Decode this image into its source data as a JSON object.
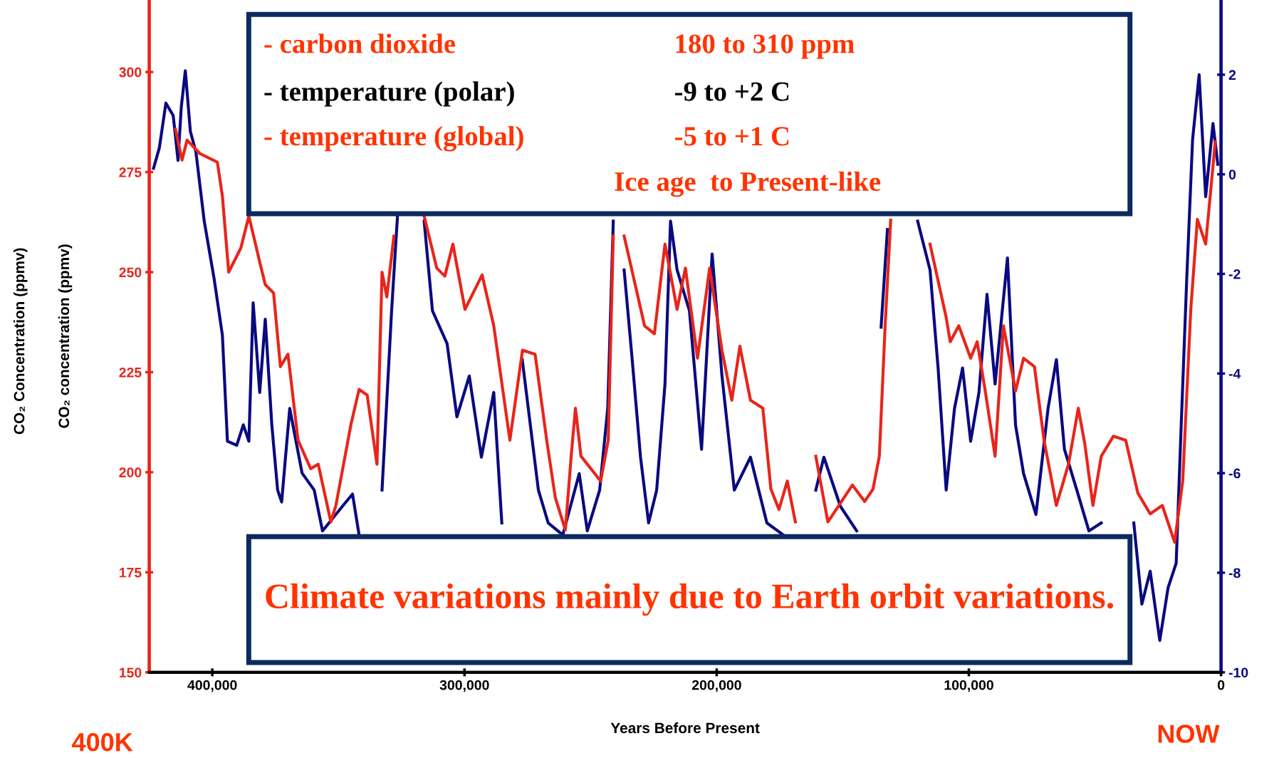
{
  "chart_data": {
    "type": "line",
    "xlabel": "Years Before Present",
    "ylabel": "CO₂ concentration (ppmv)",
    "xlim": [
      425000,
      0
    ],
    "xticks": [
      {
        "value": 400000,
        "label": "400,000"
      },
      {
        "value": 300000,
        "label": "300,000"
      },
      {
        "value": 200000,
        "label": "200,000"
      },
      {
        "value": 100000,
        "label": "100,000"
      },
      0
    ],
    "ylim": [
      150,
      318
    ],
    "yticks": [
      150,
      175,
      200,
      225,
      250,
      275,
      300
    ],
    "y2lim": [
      -10,
      3.5
    ],
    "y2ticks": [
      -10,
      -8,
      -6,
      -4,
      -2,
      0,
      2
    ],
    "grid": false,
    "legend": false,
    "series": [
      {
        "color": "#e8251b",
        "x": [
          414600,
          412000,
          410000,
          404900,
          398000,
          396000,
          393500,
          388700,
          385500,
          381000,
          379000,
          375700,
          373000,
          370000,
          366000,
          361000,
          358000,
          353000,
          351000,
          345000,
          341800,
          338600,
          334700,
          332700,
          330800,
          328000,
          323000,
          318000,
          316000,
          311000,
          307800,
          304600,
          299800,
          293000,
          288400,
          282000,
          277000,
          272000,
          267400,
          264000,
          260000,
          257700,
          256000,
          253800,
          246000,
          243000,
          241000,
          239500,
          236700,
          228600,
          224700,
          220500,
          215700,
          212400,
          207600,
          202800,
          197900,
          194000,
          190800,
          186600,
          181700,
          178500,
          175300,
          172000,
          168800,
          165600,
          160700,
          155900,
          152600,
          146200,
          141300,
          138000,
          135500,
          133200,
          131000,
          128000,
          120000,
          115400,
          109000,
          107400,
          104000,
          99300,
          96700,
          93500,
          89600,
          86300,
          81500,
          78300,
          74000,
          70200,
          65300,
          60500,
          56600,
          54000,
          50800,
          47500,
          42700,
          37800,
          33000,
          28100,
          23300,
          18400,
          15200,
          12000,
          9400,
          6100,
          2300
        ],
        "values": [
          285.7,
          278,
          283,
          279.6,
          277.5,
          269,
          250,
          256,
          264,
          252,
          246.9,
          244.8,
          226.4,
          229.5,
          208,
          200.9,
          202,
          187.6,
          191.7,
          212,
          220.7,
          219.3,
          202,
          250,
          243.8,
          259,
          null,
          null,
          264,
          251,
          249,
          257,
          240.7,
          249.3,
          236.6,
          208,
          230.5,
          229.5,
          208,
          193.7,
          185.6,
          204,
          216,
          204,
          197.8,
          208,
          259,
          null,
          259,
          236.6,
          234.6,
          257,
          240.7,
          251,
          228.5,
          251,
          230.5,
          218,
          231.5,
          218,
          216,
          195.8,
          190.7,
          197.8,
          187.6,
          null,
          204,
          187.6,
          190.7,
          196.8,
          192.7,
          195.8,
          204,
          236.6,
          263,
          null,
          null,
          257,
          238.7,
          232.6,
          236.6,
          228.5,
          232.6,
          220.3,
          204,
          236.6,
          220.3,
          228.5,
          226.4,
          208,
          191.7,
          202,
          216,
          207,
          191.7,
          204,
          209,
          208,
          194.8,
          189.6,
          191.7,
          182.5,
          197.8,
          240.7,
          263.2,
          257,
          282.6
        ]
      },
      {
        "color": "#0a0a80",
        "axis": "y2",
        "x": [
          423300,
          421000,
          418400,
          415500,
          413600,
          412300,
          410700,
          408700,
          406500,
          403200,
          399300,
          396000,
          394000,
          390300,
          387700,
          385500,
          383800,
          381200,
          379000,
          376400,
          374100,
          372500,
          369300,
          364400,
          359600,
          356300,
          348300,
          344400,
          341800,
          338600,
          334700,
          332700,
          328900,
          326600,
          322000,
          317500,
          316000,
          312700,
          306900,
          303000,
          298100,
          293300,
          288400,
          285200,
          282000,
          277100,
          273900,
          270700,
          266800,
          261000,
          254500,
          251300,
          246400,
          243200,
          241000,
          239300,
          236700,
          233500,
          230200,
          227000,
          223800,
          220500,
          218300,
          215700,
          210800,
          206000,
          201800,
          197900,
          193000,
          186600,
          180100,
          173600,
          165600,
          160700,
          157500,
          151000,
          144500,
          138000,
          134800,
          132300,
          126000,
          120300,
          115400,
          112200,
          109000,
          105700,
          102500,
          99300,
          96000,
          92800,
          89600,
          84700,
          81500,
          78300,
          73400,
          68600,
          65300,
          62100,
          57200,
          52400,
          47500,
          42700,
          34600,
          31400,
          28100,
          24300,
          21000,
          17800,
          15800,
          13600,
          11300,
          8700,
          6100,
          3200,
          1300
        ],
        "values": [
          0.12,
          0.53,
          1.43,
          1.18,
          0.28,
          1.35,
          2.08,
          0.86,
          0.45,
          -0.94,
          -2.09,
          -3.23,
          -5.36,
          -5.44,
          -5.03,
          -5.36,
          -2.58,
          -4.38,
          -2.91,
          -5.03,
          -6.34,
          -6.58,
          -4.7,
          -6.0,
          -6.34,
          -7.16,
          -6.66,
          -6.42,
          -7.24,
          null,
          null,
          -6.34,
          -2.74,
          -0.86,
          null,
          null,
          -0.94,
          -2.74,
          -3.4,
          -4.87,
          -4.05,
          -5.68,
          -4.38,
          -7.0,
          null,
          -3.72,
          -5.03,
          -6.34,
          -7.0,
          -7.24,
          -6.01,
          -7.16,
          -6.34,
          -4.7,
          -0.94,
          null,
          -1.92,
          -3.72,
          -5.68,
          -7.0,
          -6.34,
          -4.21,
          -0.94,
          -1.92,
          -2.74,
          -5.52,
          -1.6,
          -4.05,
          -6.34,
          -5.68,
          -7.0,
          -7.24,
          null,
          -6.34,
          -5.68,
          -6.66,
          -7.16,
          null,
          -3.07,
          -1.11,
          null,
          -0.94,
          -1.92,
          -3.89,
          -6.34,
          -4.7,
          -3.89,
          -5.36,
          -4.38,
          -2.41,
          -4.21,
          -1.68,
          -5.03,
          -6.01,
          -6.83,
          -4.7,
          -3.72,
          -5.52,
          -6.34,
          -7.16,
          -7.0,
          null,
          -7.0,
          -8.63,
          -7.97,
          -9.36,
          -8.3,
          -7.81,
          -5.03,
          -2.09,
          0.69,
          2.0,
          -0.45,
          1.02,
          0.2
        ]
      }
    ],
    "annotations": [
      "- carbon dioxide",
      "180 to 310 ppm",
      "- temperature (polar)",
      "-9 to +2 C",
      "- temperature (global)",
      "-5 to +1 C",
      "Ice age  to Present-like",
      "Climate variations mainly due to Earth orbit variations.",
      "400K",
      "NOW",
      "CO₂ Concentration (ppmv)"
    ]
  }
}
